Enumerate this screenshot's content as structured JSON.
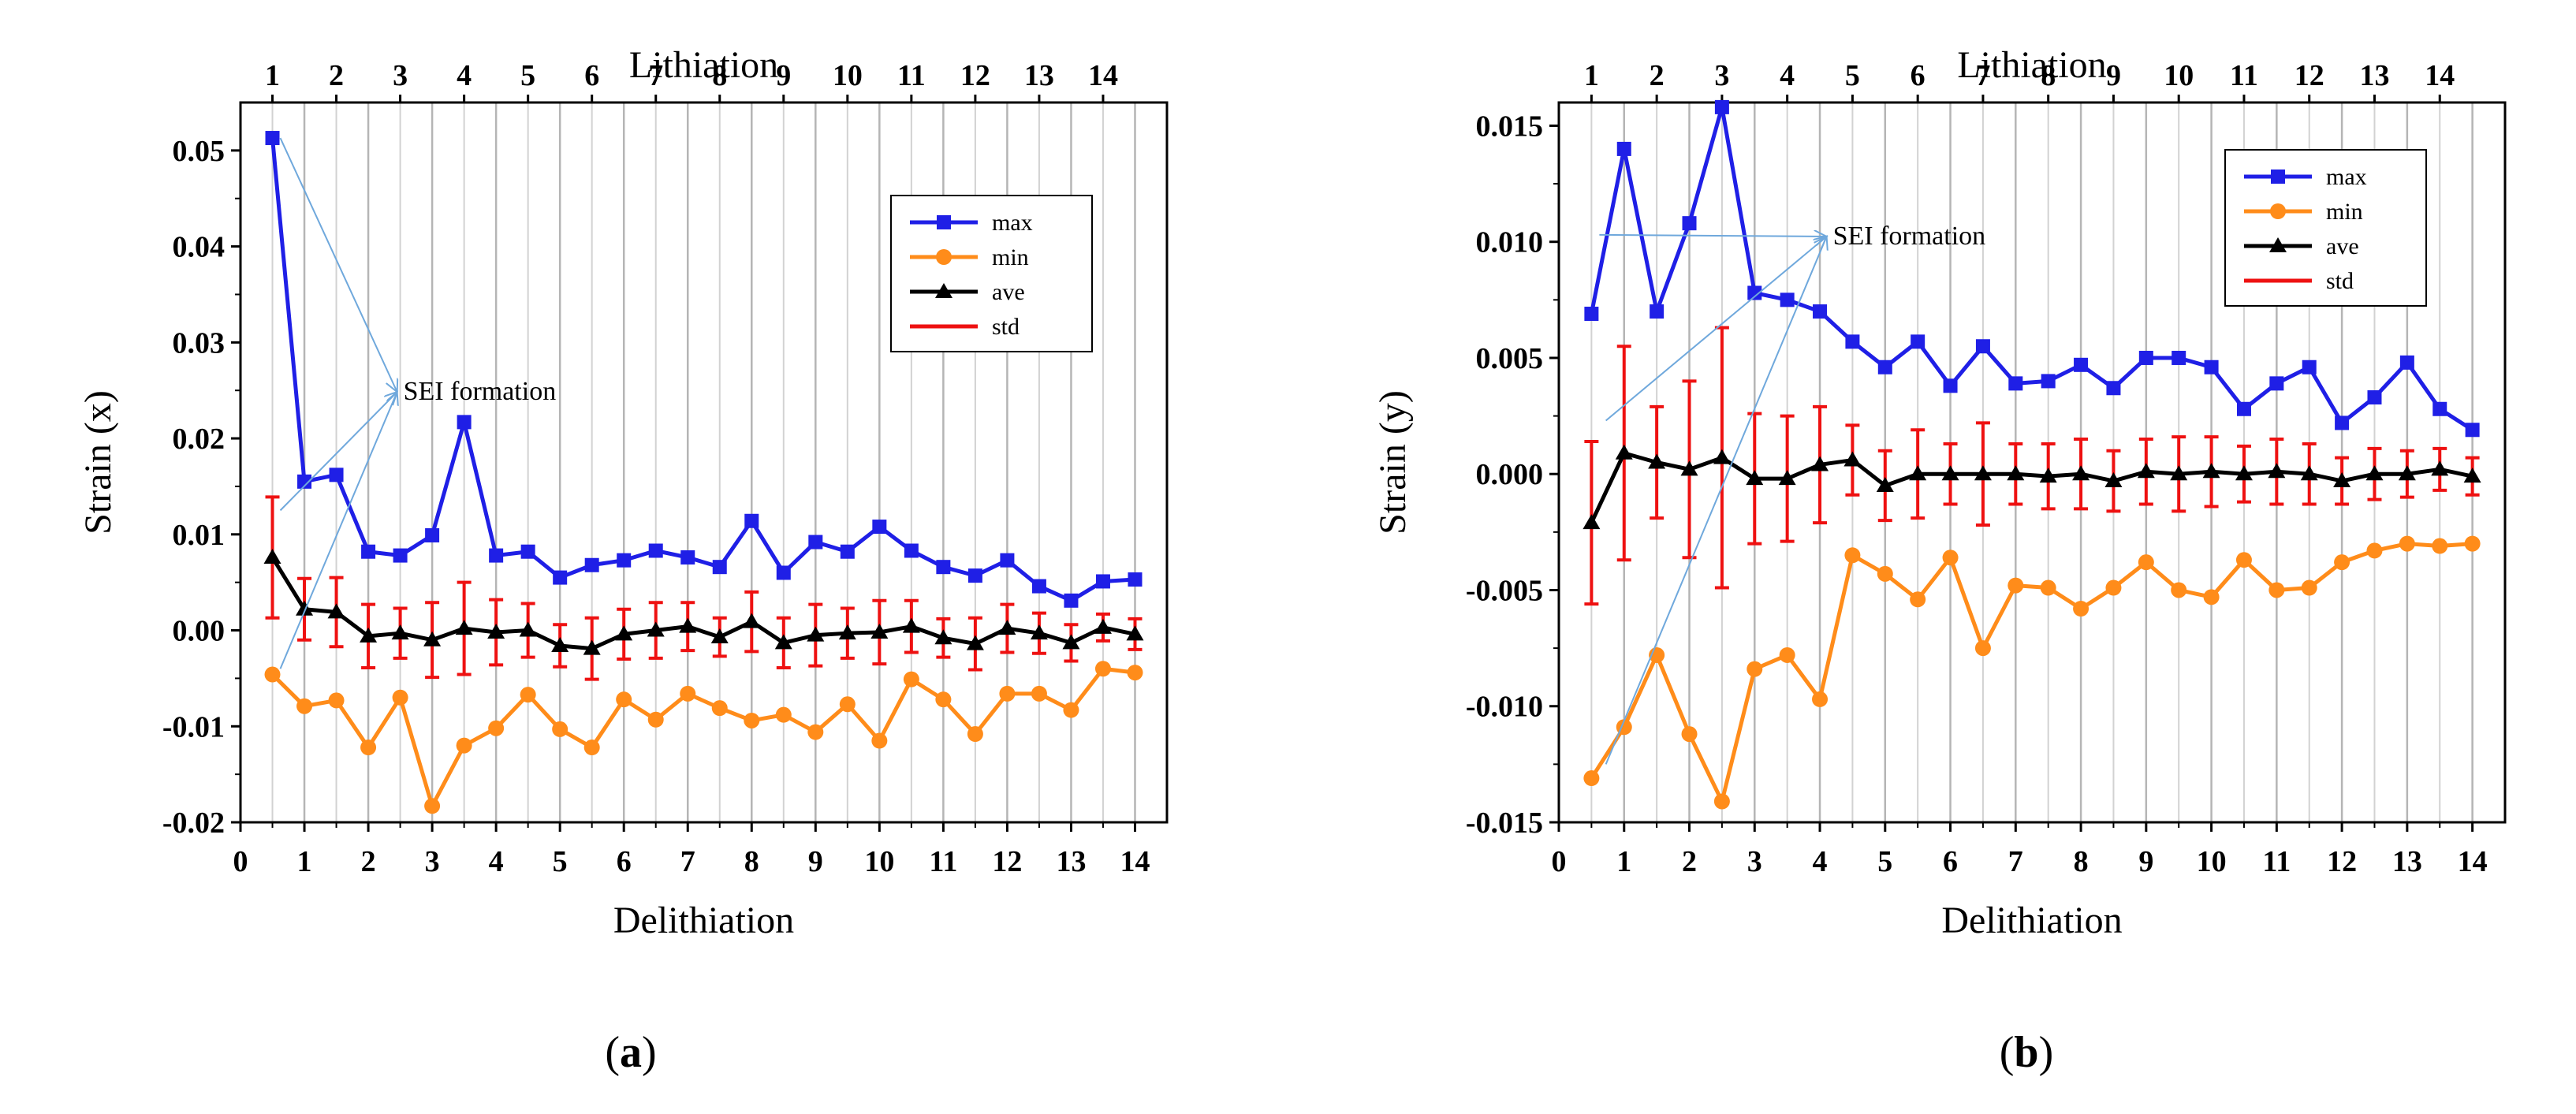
{
  "chart_data": [
    {
      "type": "line",
      "panel_label": "a",
      "xlabel": "Delithiation",
      "top_xlabel": "Lithiation",
      "ylabel": "Strain (x)",
      "xlim": [
        0,
        14.5
      ],
      "ylim": [
        -0.02,
        0.055
      ],
      "x_ticks": [
        0,
        1,
        2,
        3,
        4,
        5,
        6,
        7,
        8,
        9,
        10,
        11,
        12,
        13,
        14
      ],
      "x_tick_labels": [
        "0",
        "1",
        "2",
        "3",
        "4",
        "5",
        "6",
        "7",
        "8",
        "9",
        "10",
        "11",
        "12",
        "13",
        "14"
      ],
      "y_ticks": [
        -0.02,
        -0.01,
        0.0,
        0.01,
        0.02,
        0.03,
        0.04,
        0.05
      ],
      "y_tick_labels": [
        "-0.02",
        "-0.01",
        "0.00",
        "0.01",
        "0.02",
        "0.03",
        "0.04",
        "0.05"
      ],
      "top_ticks": [
        0.5,
        1.5,
        2.5,
        3.5,
        4.5,
        5.5,
        6.5,
        7.5,
        8.5,
        9.5,
        10.5,
        11.5,
        12.5,
        13.5
      ],
      "top_tick_labels": [
        "1",
        "2",
        "3",
        "4",
        "5",
        "6",
        "7",
        "8",
        "9",
        "10",
        "11",
        "12",
        "13",
        "14"
      ],
      "x": [
        0.5,
        1,
        1.5,
        2,
        2.5,
        3,
        3.5,
        4,
        4.5,
        5,
        5.5,
        6,
        6.5,
        7,
        7.5,
        8,
        8.5,
        9,
        9.5,
        10,
        10.5,
        11,
        11.5,
        12,
        12.5,
        13,
        13.5,
        14
      ],
      "series": [
        {
          "name": "max",
          "color": "#1f1fe6",
          "marker": "square",
          "values": [
            0.0513,
            0.0155,
            0.0162,
            0.0082,
            0.0078,
            0.0099,
            0.0217,
            0.0078,
            0.0082,
            0.0055,
            0.0068,
            0.0073,
            0.0083,
            0.0076,
            0.0066,
            0.0114,
            0.006,
            0.0092,
            0.0082,
            0.0108,
            0.0083,
            0.0066,
            0.0057,
            0.0073,
            0.0046,
            0.0031,
            0.0051,
            0.0053
          ]
        },
        {
          "name": "min",
          "color": "#ff8c1a",
          "marker": "circle",
          "values": [
            -0.0046,
            -0.0079,
            -0.0073,
            -0.0122,
            -0.007,
            -0.0183,
            -0.012,
            -0.0102,
            -0.0067,
            -0.0103,
            -0.0122,
            -0.0072,
            -0.0093,
            -0.0066,
            -0.0081,
            -0.0094,
            -0.0088,
            -0.0106,
            -0.0077,
            -0.0115,
            -0.0051,
            -0.0072,
            -0.0108,
            -0.0066,
            -0.0066,
            -0.0083,
            -0.004,
            -0.0044
          ]
        },
        {
          "name": "ave",
          "color": "#000000",
          "marker": "triangle",
          "values": [
            0.0076,
            0.0022,
            0.0019,
            -0.0006,
            -0.0003,
            -0.001,
            0.0002,
            -0.0002,
            0.0,
            -0.0016,
            -0.0019,
            -0.0004,
            0.0,
            0.0004,
            -0.0007,
            0.0009,
            -0.0013,
            -0.0005,
            -0.0003,
            -0.0002,
            0.0004,
            -0.0008,
            -0.0014,
            0.0002,
            -0.0003,
            -0.0013,
            0.0003,
            -0.0004
          ]
        },
        {
          "name": "std",
          "color": "#ee1111",
          "marker": "errorbar",
          "values": [
            0.0063,
            0.0032,
            0.0036,
            0.0033,
            0.0026,
            0.0039,
            0.0048,
            0.0034,
            0.0028,
            0.0022,
            0.0032,
            0.0026,
            0.0029,
            0.0025,
            0.002,
            0.0031,
            0.0026,
            0.0032,
            0.0026,
            0.0033,
            0.0027,
            0.002,
            0.0027,
            0.0025,
            0.0021,
            0.0019,
            0.0014,
            0.0016
          ]
        }
      ],
      "legend": [
        "max",
        "min",
        "ave",
        "std"
      ],
      "legend_position": "top-right",
      "annotation": "SEI formation"
    },
    {
      "type": "line",
      "panel_label": "b",
      "xlabel": "Delithiation",
      "top_xlabel": "Lithiation",
      "ylabel": "Strain (y)",
      "xlim": [
        0,
        14.5
      ],
      "ylim": [
        -0.015,
        0.016
      ],
      "x_ticks": [
        0,
        1,
        2,
        3,
        4,
        5,
        6,
        7,
        8,
        9,
        10,
        11,
        12,
        13,
        14
      ],
      "x_tick_labels": [
        "0",
        "1",
        "2",
        "3",
        "4",
        "5",
        "6",
        "7",
        "8",
        "9",
        "10",
        "11",
        "12",
        "13",
        "14"
      ],
      "y_ticks": [
        -0.015,
        -0.01,
        -0.005,
        0.0,
        0.005,
        0.01,
        0.015
      ],
      "y_tick_labels": [
        "-0.015",
        "-0.010",
        "-0.005",
        "0.000",
        "0.005",
        "0.010",
        "0.015"
      ],
      "top_ticks": [
        0.5,
        1.5,
        2.5,
        3.5,
        4.5,
        5.5,
        6.5,
        7.5,
        8.5,
        9.5,
        10.5,
        11.5,
        12.5,
        13.5
      ],
      "top_tick_labels": [
        "1",
        "2",
        "3",
        "4",
        "5",
        "6",
        "7",
        "8",
        "9",
        "10",
        "11",
        "12",
        "13",
        "14"
      ],
      "x": [
        0.5,
        1,
        1.5,
        2,
        2.5,
        3,
        3.5,
        4,
        4.5,
        5,
        5.5,
        6,
        6.5,
        7,
        7.5,
        8,
        8.5,
        9,
        9.5,
        10,
        10.5,
        11,
        11.5,
        12,
        12.5,
        13,
        13.5,
        14
      ],
      "series": [
        {
          "name": "max",
          "color": "#1f1fe6",
          "marker": "square",
          "values": [
            0.0069,
            0.014,
            0.007,
            0.0108,
            0.0158,
            0.0078,
            0.0075,
            0.007,
            0.0057,
            0.0046,
            0.0057,
            0.0038,
            0.0055,
            0.0039,
            0.004,
            0.0047,
            0.0037,
            0.005,
            0.005,
            0.0046,
            0.0028,
            0.0039,
            0.0046,
            0.0022,
            0.0033,
            0.0048,
            0.0028,
            0.0019
          ]
        },
        {
          "name": "min",
          "color": "#ff8c1a",
          "marker": "circle",
          "values": [
            -0.0131,
            -0.0109,
            -0.0078,
            -0.0112,
            -0.0141,
            -0.0084,
            -0.0078,
            -0.0097,
            -0.0035,
            -0.0043,
            -0.0054,
            -0.0036,
            -0.0075,
            -0.0048,
            -0.0049,
            -0.0058,
            -0.0049,
            -0.0038,
            -0.005,
            -0.0053,
            -0.0037,
            -0.005,
            -0.0049,
            -0.0038,
            -0.0033,
            -0.003,
            -0.0031,
            -0.003
          ]
        },
        {
          "name": "ave",
          "color": "#000000",
          "marker": "triangle",
          "values": [
            -0.0021,
            0.0009,
            0.0005,
            0.0002,
            0.0007,
            -0.0002,
            -0.0002,
            0.0004,
            0.0006,
            -0.0005,
            0.0,
            0.0,
            0.0,
            0.0,
            -0.0001,
            0.0,
            -0.0003,
            0.0001,
            0.0,
            0.0001,
            0.0,
            0.0001,
            0.0,
            -0.0003,
            0.0,
            0.0,
            0.0002,
            -0.0001
          ]
        },
        {
          "name": "std",
          "color": "#ee1111",
          "marker": "errorbar",
          "values": [
            0.0035,
            0.0046,
            0.0024,
            0.0038,
            0.0056,
            0.0028,
            0.0027,
            0.0025,
            0.0015,
            0.0015,
            0.0019,
            0.0013,
            0.0022,
            0.0013,
            0.0014,
            0.0015,
            0.0013,
            0.0014,
            0.0016,
            0.0015,
            0.0012,
            0.0014,
            0.0013,
            0.001,
            0.0011,
            0.001,
            0.0009,
            0.0008
          ]
        }
      ],
      "legend": [
        "max",
        "min",
        "ave",
        "std"
      ],
      "legend_position": "top-right",
      "annotation": "SEI formation"
    }
  ],
  "captions": [
    "(a)",
    "(b)"
  ]
}
